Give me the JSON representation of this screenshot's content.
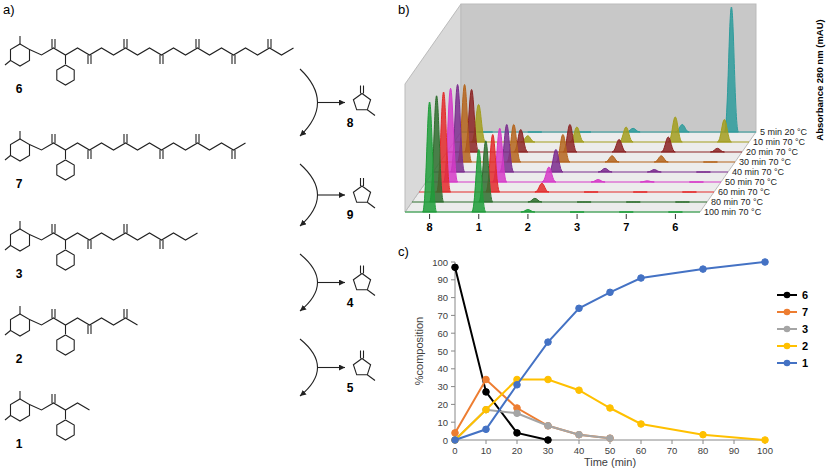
{
  "scheme": {
    "title": "a)",
    "compounds": [
      {
        "label": "6"
      },
      {
        "label": "7"
      },
      {
        "label": "3"
      },
      {
        "label": "2"
      },
      {
        "label": "1"
      }
    ],
    "byproducts": [
      {
        "label": "8"
      },
      {
        "label": "9"
      },
      {
        "label": "4"
      },
      {
        "label": "5"
      }
    ]
  },
  "chart_data": [
    {
      "type": "chromatogram",
      "title": "b)",
      "y_label": "Absorbance 280 nm (mAU)",
      "categories": [
        "8",
        "1",
        "2",
        "3",
        "7",
        "6"
      ],
      "ylim": [
        0,
        100
      ],
      "tick_labels": "x",
      "series": [
        {
          "name": "5 min 20 °C",
          "color": "#2e9c9c",
          "values": [
            0,
            0,
            0,
            3,
            6,
            100
          ]
        },
        {
          "name": "10 min 70 °C",
          "color": "#a39e1e",
          "values": [
            30,
            5,
            12,
            12,
            20,
            18
          ]
        },
        {
          "name": "20 min 70 °C",
          "color": "#8c2424",
          "values": [
            50,
            18,
            22,
            10,
            12,
            3
          ]
        },
        {
          "name": "30 min 70 °C",
          "color": "#b5651d",
          "values": [
            62,
            30,
            22,
            5,
            5,
            0
          ]
        },
        {
          "name": "40 min 70 °C",
          "color": "#7b2d8e",
          "values": [
            70,
            38,
            18,
            3,
            2,
            0
          ]
        },
        {
          "name": "50 min 70 °C",
          "color": "#d63ac8",
          "values": [
            75,
            43,
            12,
            2,
            1,
            0
          ]
        },
        {
          "name": "60 min 70 °C",
          "color": "#e32b2b",
          "values": [
            80,
            46,
            7,
            0,
            0,
            0
          ]
        },
        {
          "name": "80 min 70 °C",
          "color": "#2f6f2f",
          "values": [
            85,
            49,
            3,
            0,
            0,
            0
          ]
        },
        {
          "name": "100 min 70 °C",
          "color": "#1f9e3a",
          "values": [
            88,
            50,
            2,
            0,
            0,
            0
          ]
        }
      ]
    },
    {
      "type": "line",
      "title": "c)",
      "x_label": "Time (min)",
      "y_label": "%composition",
      "x": [
        0,
        10,
        20,
        30,
        40,
        50,
        60,
        80,
        100
      ],
      "xlim": [
        0,
        100
      ],
      "xticks": [
        0,
        10,
        20,
        30,
        40,
        50,
        60,
        70,
        80,
        90,
        100
      ],
      "ylim": [
        0,
        100
      ],
      "yticks": [
        0,
        10,
        20,
        30,
        40,
        50,
        60,
        70,
        80,
        90,
        100
      ],
      "grid": false,
      "legend": "right",
      "marker": "circle",
      "series": [
        {
          "name": "6",
          "color": "#000000",
          "values": [
            97,
            27,
            4,
            0,
            null,
            null,
            null,
            null,
            null
          ]
        },
        {
          "name": "7",
          "color": "#ed7d31",
          "values": [
            4,
            34,
            18,
            8,
            3,
            1,
            null,
            null,
            null
          ]
        },
        {
          "name": "3",
          "color": "#a5a5a5",
          "values": [
            0,
            17,
            15,
            8,
            3,
            1,
            null,
            null,
            null
          ]
        },
        {
          "name": "2",
          "color": "#ffc000",
          "values": [
            0,
            17,
            34,
            34,
            28,
            18,
            9,
            3,
            0
          ]
        },
        {
          "name": "1",
          "color": "#4472c4",
          "values": [
            0,
            6,
            31,
            55,
            74,
            83,
            91,
            96,
            100
          ]
        }
      ]
    }
  ]
}
